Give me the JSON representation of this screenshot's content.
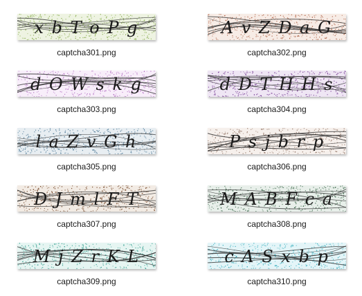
{
  "thumbnails": [
    {
      "filename": "captcha301.png",
      "text": "x b T o P g",
      "color": "#7aa33a",
      "bg": "#eef3e2"
    },
    {
      "filename": "captcha302.png",
      "text": "A v Z D a G",
      "color": "#a8583a",
      "bg": "#f7ece6"
    },
    {
      "filename": "captcha303.png",
      "text": "d O W s k g",
      "color": "#b06ac0",
      "bg": "#f8eefa"
    },
    {
      "filename": "captcha304.png",
      "text": "d D T H H s",
      "color": "#6a2a8a",
      "bg": "#efe6f4"
    },
    {
      "filename": "captcha305.png",
      "text": "l a Z v G h",
      "color": "#3a6a8a",
      "bg": "#e8eef2"
    },
    {
      "filename": "captcha306.png",
      "text": "P s j b r p",
      "color": "#8a6a5a",
      "bg": "#f6f0ec"
    },
    {
      "filename": "captcha307.png",
      "text": "D J m l F T",
      "color": "#6a3a1a",
      "bg": "#f2ebe4"
    },
    {
      "filename": "captcha308.png",
      "text": "M A B F c a",
      "color": "#2a5a3a",
      "bg": "#e8efea"
    },
    {
      "filename": "captcha309.png",
      "text": "M j Z r K L",
      "color": "#2a9a8a",
      "bg": "#e6f5f2"
    },
    {
      "filename": "captcha310.png",
      "text": "c A S x b p",
      "color": "#2aa8b8",
      "bg": "#e4f5f8"
    }
  ]
}
